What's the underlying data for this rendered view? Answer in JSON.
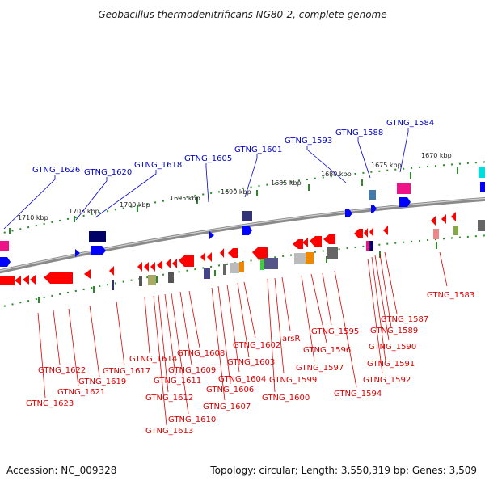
{
  "title": "Geobacillus thermodenitrificans NG80-2, complete genome",
  "footer": {
    "accession": "Accession: NC_009328",
    "summary": "Topology: circular; Length: 3,550,319 bp; Genes: 3,509"
  },
  "colors": {
    "forward_label": "#0000cc",
    "reverse_label": "#dd0000",
    "forward_gene": "#0000ff",
    "reverse_gene": "#ff0000",
    "backbone": "#888888",
    "tick": "#228822"
  },
  "kbp_labels": [
    "1710 kbp",
    "1705 kbp",
    "1700 kbp",
    "1695 kbp",
    "1690 kbp",
    "1685 kbp",
    "1680 kbp",
    "1675 kbp",
    "1670 kbp"
  ],
  "forward_labels": [
    "GTNG_1626",
    "GTNG_1620",
    "GTNG_1618",
    "GTNG_1605",
    "GTNG_1601",
    "GTNG_1593",
    "GTNG_1588",
    "GTNG_1584"
  ],
  "reverse_labels": [
    "GTNG_1583",
    "GTNG_1587",
    "GTNG_1589",
    "GTNG_1590",
    "GTNG_1591",
    "GTNG_1592",
    "GTNG_1594",
    "GTNG_1595",
    "GTNG_1596",
    "GTNG_1597",
    "arsR",
    "GTNG_1599",
    "GTNG_1600",
    "GTNG_1602",
    "GTNG_1603",
    "GTNG_1604",
    "GTNG_1606",
    "GTNG_1607",
    "GTNG_1608",
    "GTNG_1609",
    "GTNG_1610",
    "GTNG_1611",
    "GTNG_1612",
    "GTNG_1613",
    "GTNG_1614",
    "GTNG_1617",
    "GTNG_1619",
    "GTNG_1621",
    "GTNG_1622",
    "GTNG_1623"
  ]
}
